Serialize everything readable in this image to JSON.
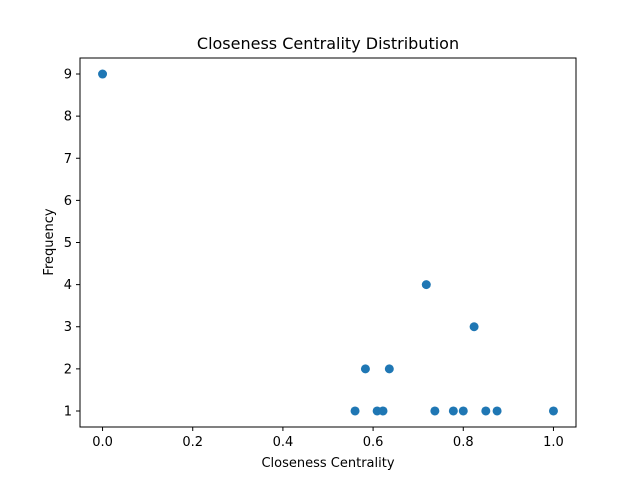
{
  "chart_data": {
    "type": "scatter",
    "title": "Closeness Centrality Distribution",
    "xlabel": "Closeness Centrality",
    "ylabel": "Frequency",
    "xlim": [
      -0.05,
      1.05
    ],
    "ylim": [
      0.62,
      9.38
    ],
    "xticks": [
      0.0,
      0.2,
      0.4,
      0.6,
      0.8,
      1.0
    ],
    "xtick_labels": [
      "0.0",
      "0.2",
      "0.4",
      "0.6",
      "0.8",
      "1.0"
    ],
    "yticks": [
      1,
      2,
      3,
      4,
      5,
      6,
      7,
      8,
      9
    ],
    "ytick_labels": [
      "1",
      "2",
      "3",
      "4",
      "5",
      "6",
      "7",
      "8",
      "9"
    ],
    "grid": false,
    "color": "#1f77b4",
    "points": [
      {
        "x": 0.0,
        "y": 9
      },
      {
        "x": 0.56,
        "y": 1
      },
      {
        "x": 0.583,
        "y": 2
      },
      {
        "x": 0.609,
        "y": 1
      },
      {
        "x": 0.622,
        "y": 1
      },
      {
        "x": 0.636,
        "y": 2
      },
      {
        "x": 0.718,
        "y": 4
      },
      {
        "x": 0.737,
        "y": 1
      },
      {
        "x": 0.778,
        "y": 1
      },
      {
        "x": 0.8,
        "y": 1
      },
      {
        "x": 0.824,
        "y": 3
      },
      {
        "x": 0.85,
        "y": 1
      },
      {
        "x": 0.875,
        "y": 1
      },
      {
        "x": 1.0,
        "y": 1
      }
    ]
  }
}
